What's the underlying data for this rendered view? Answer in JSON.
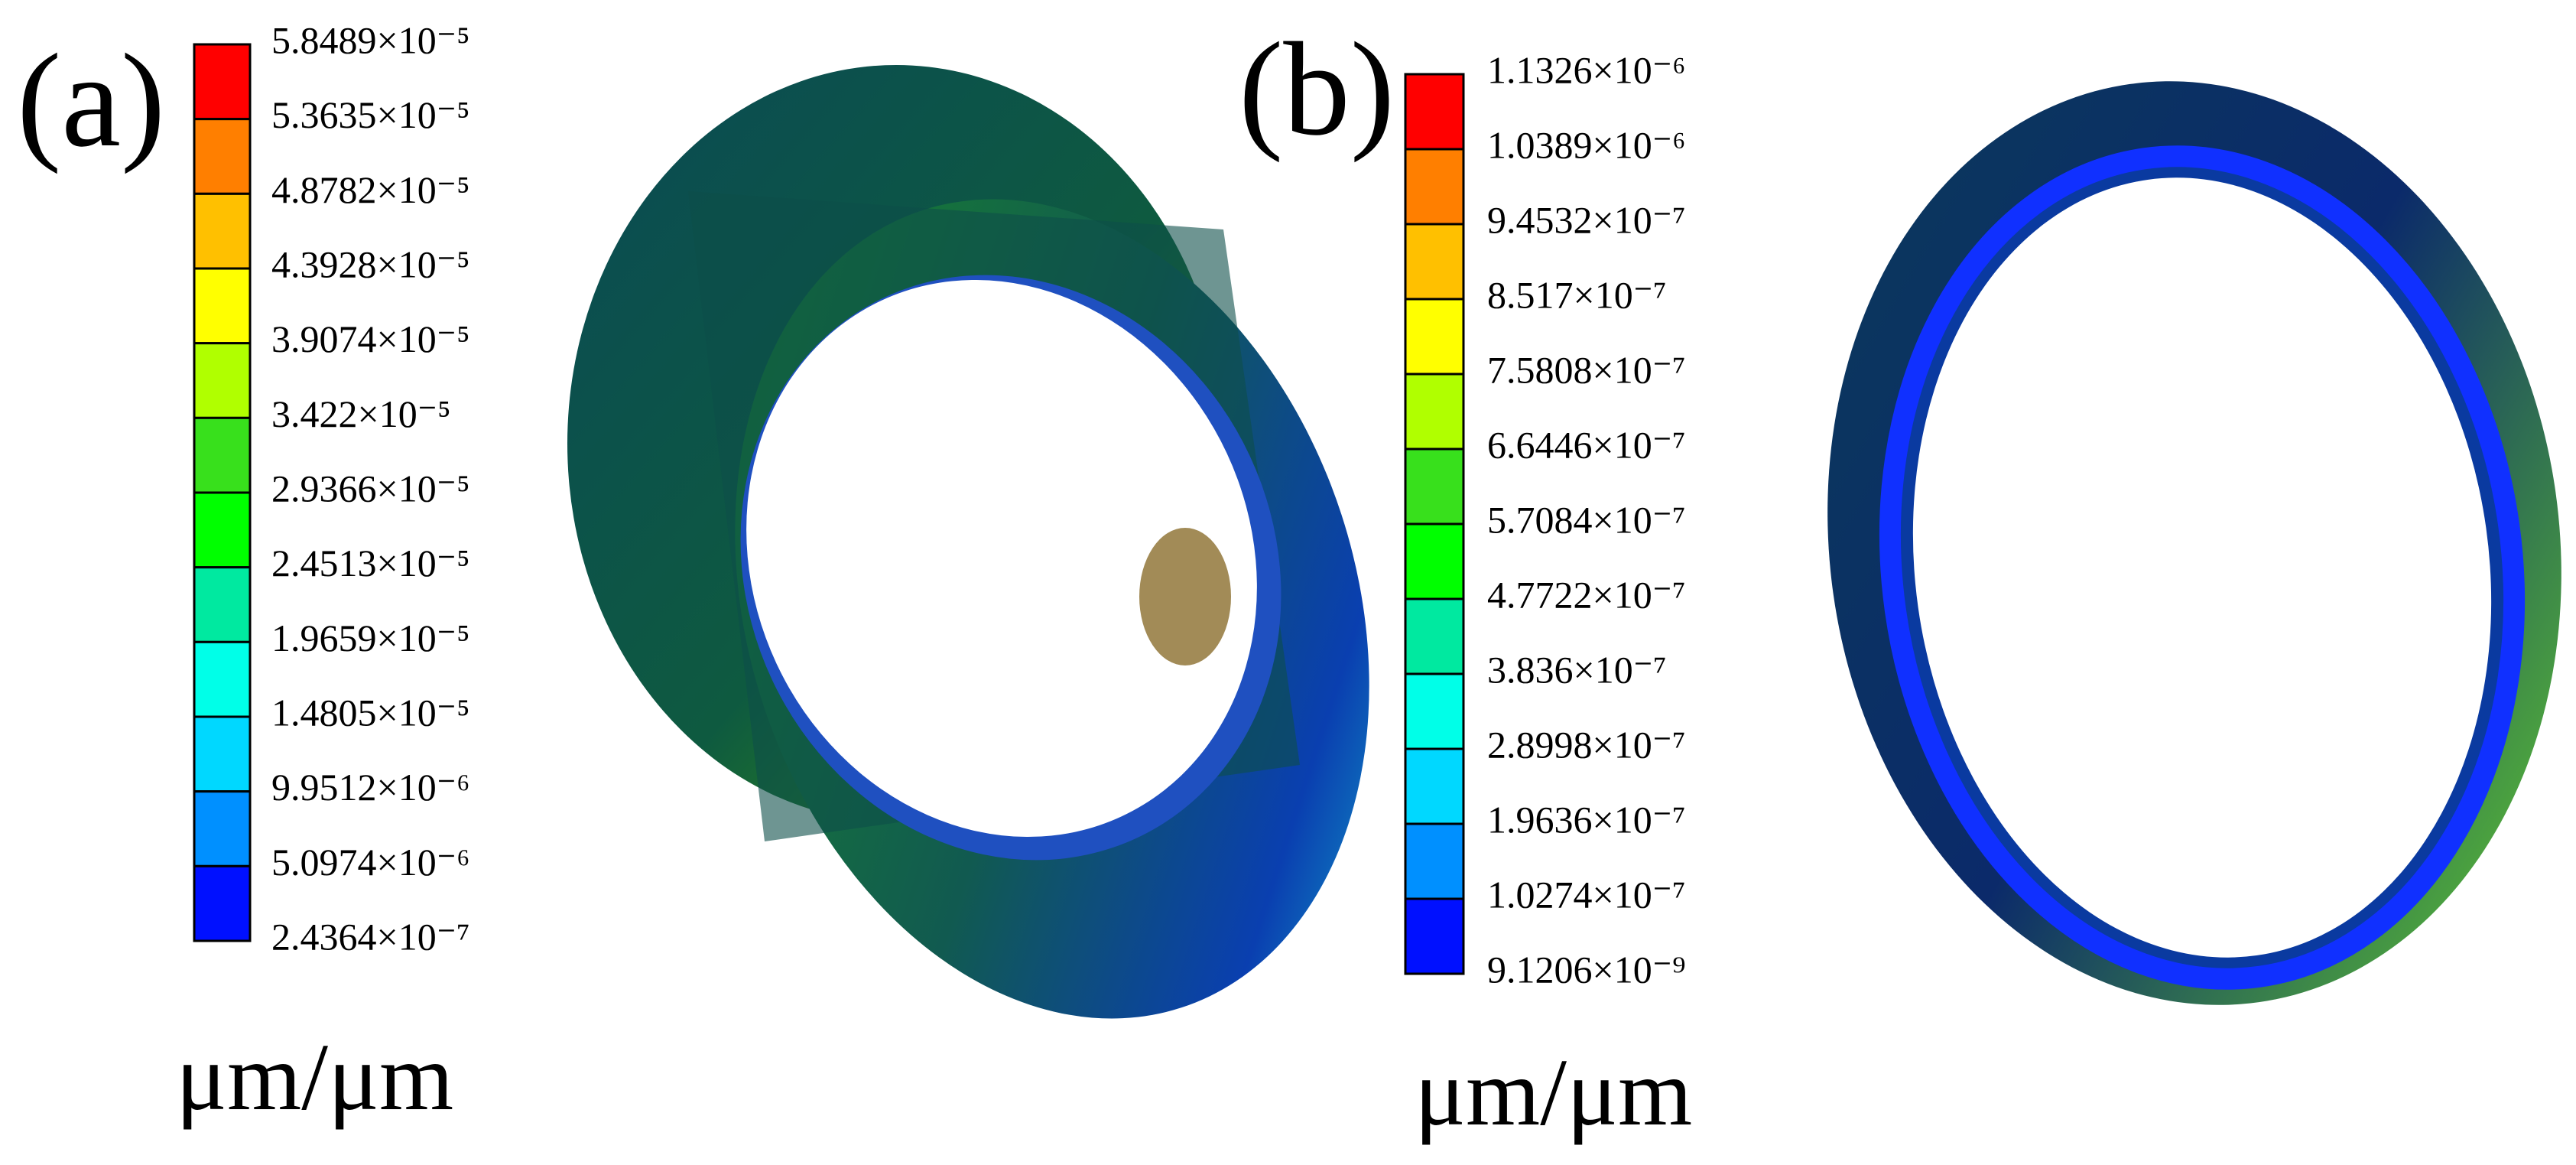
{
  "panels": [
    {
      "label": "(a)",
      "unit": "μm/μm",
      "legend_labels": [
        "5.8489×10⁻⁵",
        "5.3635×10⁻⁵",
        "4.8782×10⁻⁵",
        "4.3928×10⁻⁵",
        "3.9074×10⁻⁵",
        "3.422×10⁻⁵",
        "2.9366×10⁻⁵",
        "2.4513×10⁻⁵",
        "1.9659×10⁻⁵",
        "1.4805×10⁻⁵",
        "9.9512×10⁻⁶",
        "5.0974×10⁻⁶",
        "2.4364×10⁻⁷"
      ]
    },
    {
      "label": "(b)",
      "unit": "μm/μm",
      "legend_labels": [
        "1.1326×10⁻⁶",
        "1.0389×10⁻⁶",
        "9.4532×10⁻⁷",
        "8.517×10⁻⁷",
        "7.5808×10⁻⁷",
        "6.6446×10⁻⁷",
        "5.7084×10⁻⁷",
        "4.7722×10⁻⁷",
        "3.836×10⁻⁷",
        "2.8998×10⁻⁷",
        "1.9636×10⁻⁷",
        "1.0274×10⁻⁷",
        "9.1206×10⁻⁹"
      ]
    }
  ],
  "colors": [
    "#ff0000",
    "#ff7f00",
    "#ffc000",
    "#ffff00",
    "#b0ff00",
    "#38e01c",
    "#00ff00",
    "#00e9a0",
    "#00ffe8",
    "#00d8ff",
    "#0090ff",
    "#0010ff"
  ]
}
